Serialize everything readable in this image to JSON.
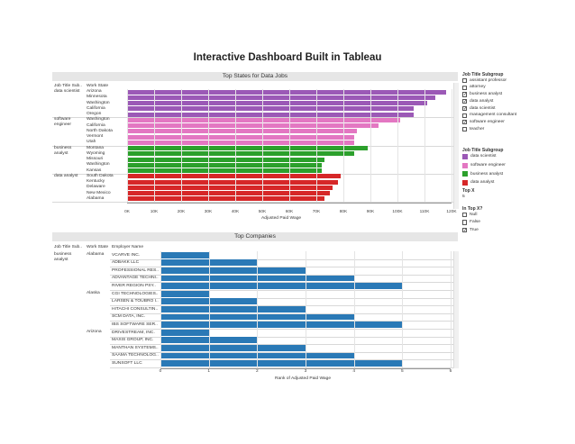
{
  "dashboard": {
    "title": "Interactive Dashboard Built in Tableau"
  },
  "top_states": {
    "title": "Top States for Data Jobs",
    "col_headers": [
      "Job Title Sub..",
      "Work State"
    ],
    "groups": [
      {
        "label": "data scientist",
        "color": "#9b59b6",
        "rows": [
          {
            "state": "Arizona",
            "value": 118000
          },
          {
            "state": "Minnesota",
            "value": 114000
          },
          {
            "state": "Washington",
            "value": 111000
          },
          {
            "state": "California",
            "value": 106000
          },
          {
            "state": "Oregon",
            "value": 106000
          }
        ]
      },
      {
        "label": "software engineer",
        "color": "#e377c2",
        "rows": [
          {
            "state": "Washington",
            "value": 101000
          },
          {
            "state": "California",
            "value": 93000
          },
          {
            "state": "North Dakota",
            "value": 85000
          },
          {
            "state": "Vermont",
            "value": 84000
          },
          {
            "state": "Utah",
            "value": 84000
          }
        ]
      },
      {
        "label": "business analyst",
        "color": "#2ca02c",
        "rows": [
          {
            "state": "Montana",
            "value": 89000
          },
          {
            "state": "Wyoming",
            "value": 84000
          },
          {
            "state": "Missouri",
            "value": 73000
          },
          {
            "state": "Washington",
            "value": 72000
          },
          {
            "state": "Kansas",
            "value": 72000
          }
        ]
      },
      {
        "label": "data analyst",
        "color": "#d62728",
        "rows": [
          {
            "state": "South Dakota",
            "value": 79000
          },
          {
            "state": "Kentucky",
            "value": 78000
          },
          {
            "state": "Delaware",
            "value": 76000
          },
          {
            "state": "New Mexico",
            "value": 75000
          },
          {
            "state": "Alabama",
            "value": 73000
          }
        ]
      }
    ],
    "x_ticks": [
      "0K",
      "10K",
      "20K",
      "30K",
      "40K",
      "50K",
      "60K",
      "70K",
      "80K",
      "90K",
      "100K",
      "110K",
      "120K"
    ],
    "x_max": 120000,
    "x_label": "Adjusted Paid Wage"
  },
  "top_companies": {
    "title": "Top Companies",
    "col_headers": [
      "Job Title Sub..",
      "Work State",
      "Employer Name"
    ],
    "job_title": "business analyst",
    "states": [
      {
        "state": "Alabama",
        "rows": [
          {
            "employer": "VCARVE INC.",
            "rank": 1
          },
          {
            "employer": "ADBAKK LLC",
            "rank": 2
          },
          {
            "employer": "PROFESSIONAL RES..",
            "rank": 3
          },
          {
            "employer": "ADVANTAGE TECHNI..",
            "rank": 4
          },
          {
            "employer": "RIVER REGION PSY..",
            "rank": 5
          }
        ]
      },
      {
        "state": "Alaska",
        "rows": [
          {
            "employer": "CGI TECHNOLOGIES..",
            "rank": 1
          },
          {
            "employer": "LARSEN & TOUBRO I..",
            "rank": 2
          },
          {
            "employer": "HITACHI CONSULTIN..",
            "rank": 3
          },
          {
            "employer": "SCM DATA, INC.",
            "rank": 4
          },
          {
            "employer": "IBS SOFTWARE SER..",
            "rank": 5
          }
        ]
      },
      {
        "state": "Arizona",
        "rows": [
          {
            "employer": "DRIVESTREAM, INC.",
            "rank": 1
          },
          {
            "employer": "MAXIS GROUP, INC.",
            "rank": 2
          },
          {
            "employer": "MANTHAN SYSTEMS..",
            "rank": 3
          },
          {
            "employer": "SAAMA TECHNOLOG..",
            "rank": 4
          },
          {
            "employer": "SUNSOFT LLC",
            "rank": 5
          }
        ]
      }
    ],
    "x_ticks": [
      "0",
      "1",
      "2",
      "3",
      "4",
      "5",
      "6"
    ],
    "x_max": 6.6,
    "x_label": "Rank of Adjusted Paid Wage"
  },
  "filters": {
    "job_title_filter": {
      "title": "Job Title Subgroup",
      "items": [
        {
          "label": "assistant professor",
          "checked": false
        },
        {
          "label": "attorney",
          "checked": false
        },
        {
          "label": "business analyst",
          "checked": true
        },
        {
          "label": "data analyst",
          "checked": true
        },
        {
          "label": "data scientist",
          "checked": true
        },
        {
          "label": "management consultant",
          "checked": false
        },
        {
          "label": "software engineer",
          "checked": true
        },
        {
          "label": "teacher",
          "checked": false
        }
      ]
    },
    "color_legend": {
      "title": "Job Title Subgroup",
      "items": [
        {
          "label": "data scientist",
          "color": "#9b59b6"
        },
        {
          "label": "software engineer",
          "color": "#e377c2"
        },
        {
          "label": "business analyst",
          "color": "#2ca02c"
        },
        {
          "label": "data analyst",
          "color": "#d62728"
        }
      ]
    },
    "top_x": {
      "title": "Top X",
      "value": "5"
    },
    "in_top_x": {
      "title": "In Top X?",
      "items": [
        {
          "label": "Null",
          "checked": false
        },
        {
          "label": "False",
          "checked": false
        },
        {
          "label": "True",
          "checked": true
        }
      ]
    }
  }
}
